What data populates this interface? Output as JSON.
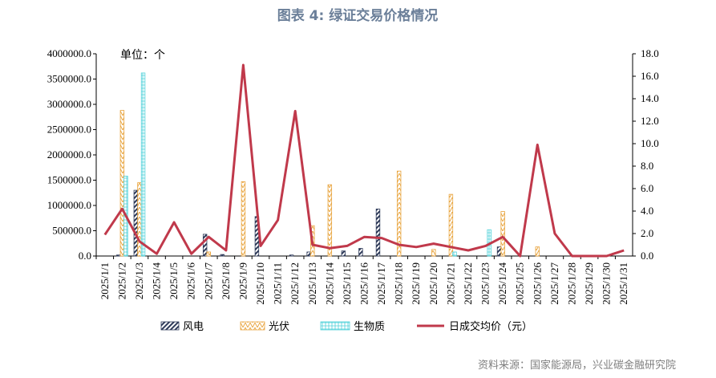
{
  "title": "图表 4:  绿证交易价格情况",
  "unit_label": "单位：个",
  "source": "资料来源：国家能源局，兴业碳金融研究院",
  "colors": {
    "wind": "#2e3a59",
    "solar": "#e8a33c",
    "biomass": "#4fd1d9",
    "price": "#c0394b",
    "title": "#6b7f99",
    "source": "#7f7f7f"
  },
  "chart_data": {
    "type": "bar",
    "categories": [
      "2025/1/1",
      "2025/1/2",
      "2025/1/3",
      "2025/1/4",
      "2025/1/5",
      "2025/1/6",
      "2025/1/7",
      "2025/1/8",
      "2025/1/9",
      "2025/1/10",
      "2025/1/11",
      "2025/1/12",
      "2025/1/13",
      "2025/1/14",
      "2025/1/15",
      "2025/1/16",
      "2025/1/17",
      "2025/1/18",
      "2025/1/19",
      "2025/1/20",
      "2025/1/21",
      "2025/1/22",
      "2025/1/23",
      "2025/1/24",
      "2025/1/25",
      "2025/1/26",
      "2025/1/27",
      "2025/1/28",
      "2025/1/29",
      "2025/1/30",
      "2025/1/31"
    ],
    "series": [
      {
        "name": "风电",
        "kind": "bar",
        "axis": "left",
        "values": [
          0,
          20000,
          1300000,
          0,
          0,
          0,
          430000,
          30000,
          0,
          780000,
          0,
          20000,
          80000,
          0,
          100000,
          150000,
          930000,
          0,
          0,
          0,
          0,
          0,
          0,
          180000,
          0,
          0,
          0,
          0,
          0,
          0,
          0
        ]
      },
      {
        "name": "光伏",
        "kind": "bar",
        "axis": "left",
        "values": [
          0,
          2880000,
          1450000,
          0,
          0,
          0,
          80000,
          0,
          1470000,
          0,
          0,
          0,
          600000,
          1410000,
          0,
          0,
          0,
          1680000,
          0,
          130000,
          1220000,
          0,
          0,
          880000,
          0,
          180000,
          0,
          0,
          0,
          0,
          0
        ]
      },
      {
        "name": "生物质",
        "kind": "bar",
        "axis": "left",
        "values": [
          0,
          1580000,
          3620000,
          0,
          0,
          0,
          0,
          0,
          0,
          0,
          0,
          0,
          0,
          0,
          0,
          0,
          0,
          0,
          0,
          0,
          80000,
          0,
          520000,
          0,
          0,
          0,
          0,
          0,
          0,
          0,
          0
        ]
      },
      {
        "name": "日成交均价（元）",
        "kind": "line",
        "axis": "right",
        "values": [
          1.9,
          4.2,
          1.3,
          0.2,
          3.0,
          0.2,
          1.7,
          0.5,
          17.0,
          0.9,
          3.2,
          12.9,
          1.0,
          0.7,
          0.9,
          1.7,
          1.6,
          1.0,
          0.8,
          1.1,
          0.8,
          0.5,
          0.9,
          1.7,
          0.0,
          9.9,
          2.0,
          0.0,
          0.0,
          0.0,
          0.5
        ]
      }
    ],
    "y_left": {
      "min": 0,
      "max": 4000000,
      "ticks": [
        "0.0",
        "500000.0",
        "1000000.0",
        "1500000.0",
        "2000000.0",
        "2500000.0",
        "3000000.0",
        "3500000.0",
        "4000000.0"
      ]
    },
    "y_right": {
      "min": 0,
      "max": 18,
      "ticks": [
        "0.0",
        "2.0",
        "4.0",
        "6.0",
        "8.0",
        "10.0",
        "12.0",
        "14.0",
        "16.0",
        "18.0"
      ]
    },
    "legend_position": "bottom",
    "grid": false
  }
}
